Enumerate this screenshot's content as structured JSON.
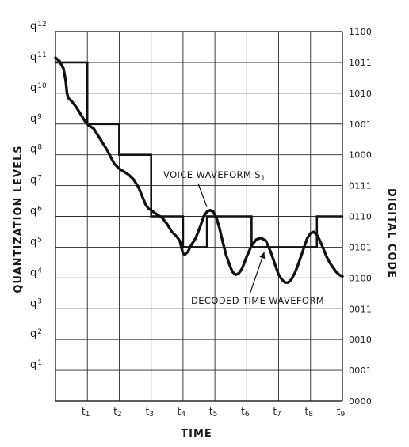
{
  "chart_data": {
    "type": "line",
    "xlabel": "TIME",
    "ylabel_left": "QUANTIZATION LEVELS",
    "ylabel_right": "DIGITAL CODE",
    "x_ticks": [
      "t1",
      "t2",
      "t3",
      "t4",
      "t5",
      "t6",
      "t7",
      "t8",
      "t9"
    ],
    "x_range": [
      0,
      9
    ],
    "y_range": [
      0,
      12
    ],
    "grid": true,
    "quantization_levels": [
      {
        "q": "q",
        "n": "1",
        "level": 1
      },
      {
        "q": "q",
        "n": "2",
        "level": 2
      },
      {
        "q": "q",
        "n": "3",
        "level": 3
      },
      {
        "q": "q",
        "n": "4",
        "level": 4
      },
      {
        "q": "q",
        "n": "5",
        "level": 5
      },
      {
        "q": "q",
        "n": "6",
        "level": 6
      },
      {
        "q": "q",
        "n": "7",
        "level": 7
      },
      {
        "q": "q",
        "n": "8",
        "level": 8
      },
      {
        "q": "q",
        "n": "9",
        "level": 9
      },
      {
        "q": "q",
        "n": "10",
        "level": 10
      },
      {
        "q": "q",
        "n": "11",
        "level": 11
      },
      {
        "q": "q",
        "n": "12",
        "level": 12
      }
    ],
    "digital_codes": [
      {
        "code": "0000",
        "level": 0
      },
      {
        "code": "0001",
        "level": 1
      },
      {
        "code": "0010",
        "level": 2
      },
      {
        "code": "0011",
        "level": 3
      },
      {
        "code": "0100",
        "level": 4
      },
      {
        "code": "0101",
        "level": 5
      },
      {
        "code": "0110",
        "level": 6
      },
      {
        "code": "0111",
        "level": 7
      },
      {
        "code": "1000",
        "level": 8
      },
      {
        "code": "1001",
        "level": 9
      },
      {
        "code": "1010",
        "level": 10
      },
      {
        "code": "1011",
        "level": 11
      },
      {
        "code": "1100",
        "level": 12
      }
    ],
    "series": [
      {
        "kind": "analog",
        "x": [
          0,
          0.12,
          0.25,
          0.32,
          0.36,
          0.4,
          0.5,
          0.65,
          0.8,
          0.95,
          1.05,
          1.2,
          1.35,
          1.5,
          1.62,
          1.72,
          1.85,
          2.0,
          2.15,
          2.3,
          2.45,
          2.6,
          2.72,
          2.82,
          2.92,
          3.0,
          3.1,
          3.2,
          3.35,
          3.5,
          3.65,
          3.8,
          3.9,
          3.97,
          4.0,
          4.05,
          4.15,
          4.25,
          4.4,
          4.55,
          4.65,
          4.75,
          4.85,
          4.95,
          5.05,
          5.15,
          5.25,
          5.35,
          5.45,
          5.55,
          5.65,
          5.75,
          5.85,
          6.0,
          6.15,
          6.3,
          6.45,
          6.6,
          6.75,
          6.9,
          7.0,
          7.1,
          7.2,
          7.3,
          7.4,
          7.5,
          7.6,
          7.7,
          7.8,
          7.9,
          8.0,
          8.1,
          8.2,
          8.3,
          8.4,
          8.5,
          8.6,
          8.7,
          8.8,
          8.9,
          9.0
        ],
        "y": [
          11.15,
          11.05,
          10.8,
          10.4,
          10.0,
          9.85,
          9.75,
          9.55,
          9.3,
          9.05,
          8.95,
          8.85,
          8.6,
          8.35,
          8.15,
          7.95,
          7.7,
          7.55,
          7.45,
          7.35,
          7.2,
          6.95,
          6.65,
          6.4,
          6.25,
          6.2,
          6.12,
          6.05,
          5.95,
          5.75,
          5.5,
          5.35,
          5.2,
          4.9,
          4.8,
          4.75,
          4.85,
          5.05,
          5.3,
          5.7,
          6.0,
          6.15,
          6.2,
          6.15,
          5.95,
          5.6,
          5.15,
          4.75,
          4.45,
          4.2,
          4.1,
          4.15,
          4.3,
          4.7,
          5.05,
          5.25,
          5.3,
          5.2,
          4.85,
          4.4,
          4.1,
          3.95,
          3.85,
          3.85,
          3.95,
          4.15,
          4.4,
          4.7,
          5.0,
          5.3,
          5.45,
          5.5,
          5.4,
          5.2,
          4.95,
          4.7,
          4.5,
          4.35,
          4.2,
          4.1,
          4.05
        ]
      },
      {
        "kind": "decoded",
        "x": [
          0,
          1,
          1,
          2,
          2,
          3,
          3,
          4,
          4,
          4.75,
          4.75,
          6.15,
          6.15,
          8.2,
          8.2,
          9
        ],
        "y": [
          11,
          11,
          9,
          9,
          8,
          8,
          6,
          6,
          5,
          5,
          6,
          6,
          5,
          5,
          6,
          6
        ]
      }
    ],
    "annotations": [
      {
        "text": "VOICE WAVEFORM S",
        "sub": "1",
        "points_to_x": 4.8,
        "points_to_y": 6.2
      },
      {
        "text": "DECODED TIME WAVEFORM",
        "points_to_x": 6.55,
        "points_to_y": 5.0
      }
    ]
  }
}
